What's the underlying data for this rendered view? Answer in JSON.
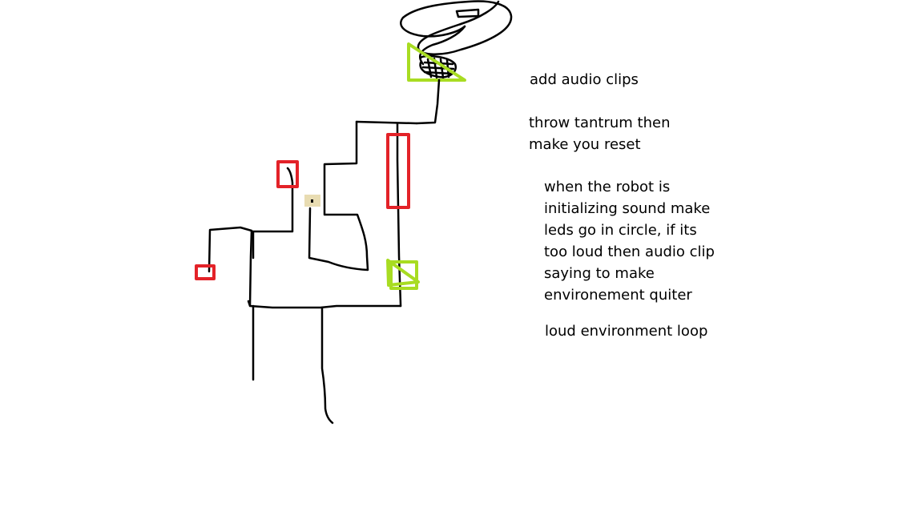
{
  "colors": {
    "background": "#ffffff",
    "ink": "#000000",
    "red": "#e32228",
    "green": "#a8dc22",
    "tan": "#e8dcb2"
  },
  "notes": {
    "add_audio": "add audio clips",
    "tantrum": [
      "throw tantrum then",
      "make you reset"
    ],
    "initializing": [
      "when the robot is",
      "initializing sound make",
      "leds go in circle, if its",
      "too loud then audio clip",
      "saying to make",
      "environement quiter"
    ],
    "loop": "loud environment loop"
  }
}
